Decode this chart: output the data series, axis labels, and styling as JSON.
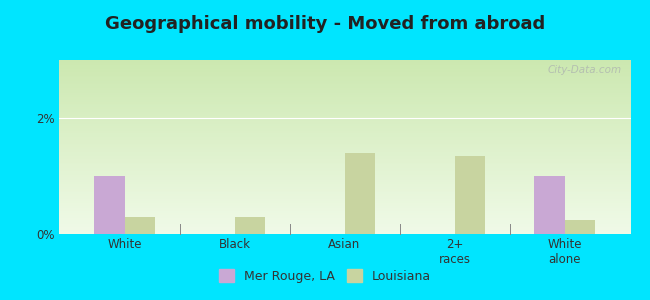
{
  "title": "Geographical mobility - Moved from abroad",
  "categories": [
    "White",
    "Black",
    "Asian",
    "2+\nraces",
    "White\nalone"
  ],
  "mer_rouge": [
    1.0,
    0.0,
    0.0,
    0.0,
    1.0
  ],
  "louisiana": [
    0.3,
    0.3,
    1.4,
    1.35,
    0.25
  ],
  "mer_rouge_color": "#c9a8d4",
  "louisiana_color": "#c8d4a0",
  "ylim": [
    0,
    3.0
  ],
  "yticks": [
    0,
    2
  ],
  "ytick_labels": [
    "0%",
    "2%"
  ],
  "grad_top": "#cce8b0",
  "grad_bottom": "#f0fae8",
  "outer_background": "#00e5ff",
  "bar_width": 0.28,
  "legend_mer_rouge": "Mer Rouge, LA",
  "legend_louisiana": "Louisiana",
  "title_fontsize": 13,
  "watermark": "City-Data.com"
}
